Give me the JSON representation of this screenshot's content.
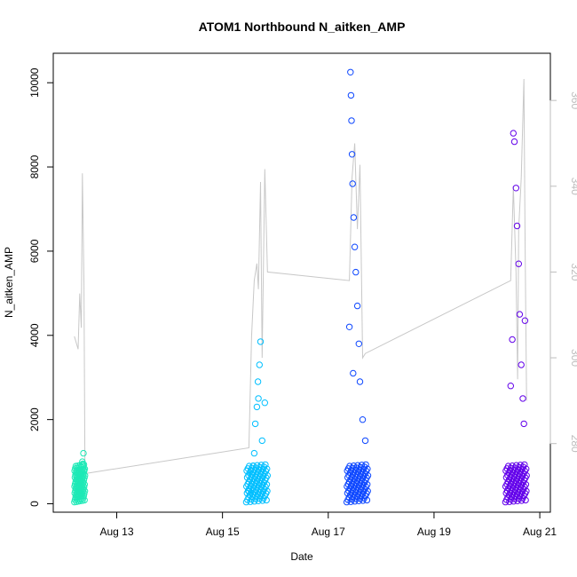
{
  "chart_data": {
    "type": "scatter",
    "title": "ATOM1 Northbound N_aitken_AMP",
    "xlabel": "Date",
    "ylabel": "N_aitken_AMP",
    "x_ticks": [
      "Aug 13",
      "Aug 15",
      "Aug 17",
      "Aug 19",
      "Aug 21"
    ],
    "x_tick_days": [
      13,
      15,
      17,
      19,
      21
    ],
    "x_range_days": [
      11.8,
      21.2
    ],
    "y_ticks": [
      "0",
      "2000",
      "4000",
      "6000",
      "8000",
      "10000"
    ],
    "y_tick_values": [
      0,
      2000,
      4000,
      6000,
      8000,
      10000
    ],
    "ylim": [
      -200,
      10700
    ],
    "y2_ticks": [
      "280",
      "300",
      "320",
      "340",
      "360"
    ],
    "y2_tick_values": [
      280,
      300,
      320,
      340,
      360
    ],
    "y2lim": [
      264,
      371
    ],
    "grid": false,
    "series": [
      {
        "color": "#1de9b6",
        "x_range": [
          12.2,
          12.4
        ],
        "points": [
          [
            12.25,
            150
          ],
          [
            12.28,
            300
          ],
          [
            12.3,
            550
          ],
          [
            12.32,
            700
          ],
          [
            12.35,
            1000
          ],
          [
            12.37,
            1200
          ],
          [
            12.38,
            800
          ],
          [
            12.34,
            400
          ],
          [
            12.31,
            250
          ],
          [
            12.27,
            600
          ],
          [
            12.36,
            950
          ]
        ]
      },
      {
        "color": "#00bfff",
        "x_range": [
          15.45,
          15.85
        ],
        "points": [
          [
            15.5,
            300
          ],
          [
            15.55,
            700
          ],
          [
            15.6,
            1200
          ],
          [
            15.62,
            1900
          ],
          [
            15.65,
            2300
          ],
          [
            15.67,
            2900
          ],
          [
            15.7,
            3300
          ],
          [
            15.72,
            3850
          ],
          [
            15.75,
            1500
          ],
          [
            15.8,
            2400
          ],
          [
            15.68,
            2500
          ],
          [
            15.58,
            900
          ]
        ]
      },
      {
        "color": "#0d47ff",
        "x_range": [
          17.35,
          17.75
        ],
        "points": [
          [
            17.42,
            10250
          ],
          [
            17.43,
            9700
          ],
          [
            17.44,
            9100
          ],
          [
            17.45,
            8300
          ],
          [
            17.46,
            7600
          ],
          [
            17.48,
            6800
          ],
          [
            17.5,
            6100
          ],
          [
            17.52,
            5500
          ],
          [
            17.55,
            4700
          ],
          [
            17.58,
            3800
          ],
          [
            17.6,
            2900
          ],
          [
            17.65,
            2000
          ],
          [
            17.7,
            1500
          ],
          [
            17.4,
            4200
          ],
          [
            17.47,
            3100
          ]
        ]
      },
      {
        "color": "#6200ea",
        "x_range": [
          20.35,
          20.75
        ],
        "points": [
          [
            20.5,
            8800
          ],
          [
            20.52,
            8600
          ],
          [
            20.55,
            7500
          ],
          [
            20.57,
            6600
          ],
          [
            20.6,
            5700
          ],
          [
            20.62,
            4500
          ],
          [
            20.65,
            3300
          ],
          [
            20.68,
            2500
          ],
          [
            20.7,
            1900
          ],
          [
            20.72,
            4350
          ],
          [
            20.45,
            2800
          ],
          [
            20.48,
            3900
          ]
        ]
      }
    ],
    "overlay_line": {
      "color": "#c8c8c8",
      "y_axis": "right",
      "points": [
        [
          12.2,
          305
        ],
        [
          12.27,
          302
        ],
        [
          12.3,
          315
        ],
        [
          12.33,
          307
        ],
        [
          12.35,
          343
        ],
        [
          12.38,
          317
        ],
        [
          12.4,
          273
        ],
        [
          15.5,
          279
        ],
        [
          15.55,
          305
        ],
        [
          15.6,
          318
        ],
        [
          15.65,
          322
        ],
        [
          15.68,
          316
        ],
        [
          15.72,
          341
        ],
        [
          15.75,
          300
        ],
        [
          15.8,
          344
        ],
        [
          15.85,
          320
        ],
        [
          17.4,
          318
        ],
        [
          17.45,
          342
        ],
        [
          17.5,
          350
        ],
        [
          17.55,
          330
        ],
        [
          17.6,
          345
        ],
        [
          17.65,
          300
        ],
        [
          17.7,
          301
        ],
        [
          20.45,
          318
        ],
        [
          20.5,
          340
        ],
        [
          20.55,
          320
        ],
        [
          20.58,
          295
        ],
        [
          20.6,
          330
        ],
        [
          20.65,
          342
        ],
        [
          20.7,
          365
        ],
        [
          20.72,
          330
        ],
        [
          20.75,
          290
        ]
      ]
    }
  }
}
